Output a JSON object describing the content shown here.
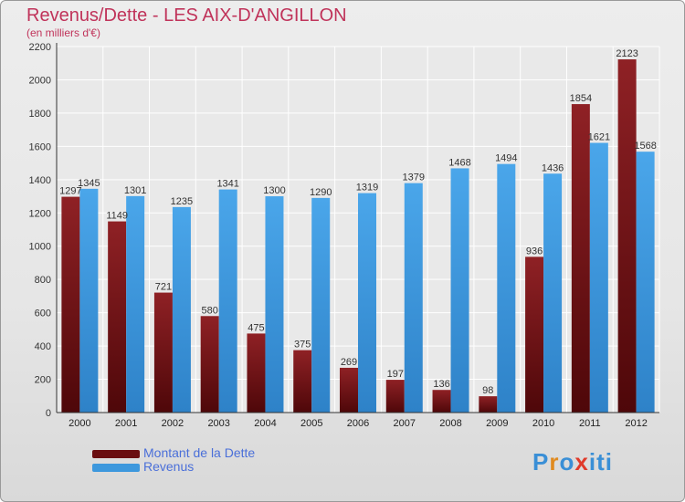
{
  "title": "Revenus/Dette - LES AIX-D'ANGILLON",
  "subtitle": "(en milliers d'€)",
  "colors": {
    "dette": "#7a1518",
    "revenus": "#3d98dd",
    "title": "#c0335a"
  },
  "logo": {
    "letters": [
      "P",
      "r",
      "o",
      "x",
      "i",
      "t",
      "i"
    ],
    "colors": [
      "#3a8fd6",
      "#e08a1e",
      "#3a8fd6",
      "#e03a2a",
      "#3a8fd6",
      "#3a8fd6",
      "#3a8fd6"
    ]
  },
  "chart_data": {
    "type": "bar",
    "title": "Revenus/Dette - LES AIX-D'ANGILLON",
    "subtitle": "(en milliers d'€)",
    "categories": [
      "2000",
      "2001",
      "2002",
      "2003",
      "2004",
      "2005",
      "2006",
      "2007",
      "2008",
      "2009",
      "2010",
      "2011",
      "2012"
    ],
    "series": [
      {
        "name": "Montant de la Dette",
        "values": [
          1297,
          1149,
          721,
          580,
          475,
          375,
          269,
          197,
          136,
          98,
          936,
          1854,
          2123
        ],
        "labels": [
          "1297",
          "1149",
          "721",
          "580",
          "475",
          "375",
          "269",
          "197",
          "136",
          "98",
          "936",
          "1854",
          "2123"
        ]
      },
      {
        "name": "Revenus",
        "values": [
          1345,
          1301,
          1235,
          1341,
          1300,
          1290,
          1319,
          1379,
          1468,
          1494,
          1436,
          1621,
          1568
        ],
        "labels": [
          "1345",
          "1301",
          "1235",
          "1341",
          "1300",
          "1290",
          "1319",
          "1379",
          "1468",
          "1494",
          "1436",
          "1621",
          "1568"
        ]
      }
    ],
    "ylim": [
      0,
      2200
    ],
    "yticks": [
      0,
      200,
      400,
      600,
      800,
      1000,
      1200,
      1400,
      1600,
      1800,
      2000,
      2200
    ],
    "grid": true,
    "legend_position": "bottom-left"
  }
}
